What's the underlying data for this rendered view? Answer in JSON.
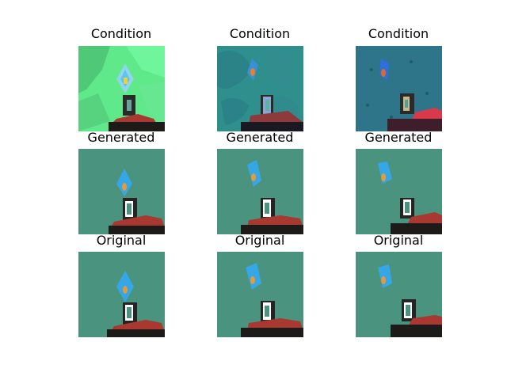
{
  "grid": {
    "row_titles": [
      "Condition",
      "Generated",
      "Original"
    ]
  },
  "palette": {
    "scene_background": "#4a937f",
    "gem_blue": "#36a7e6",
    "gem_core_orange": "#e79a39",
    "robot_red": "#a83830",
    "shadow_dark": "#262422",
    "base_black": "#1d1b1a",
    "condition_green": "#5fe98a",
    "condition_teal": "#2e8f8c",
    "condition_blue_teal": "#2f7b8e"
  }
}
